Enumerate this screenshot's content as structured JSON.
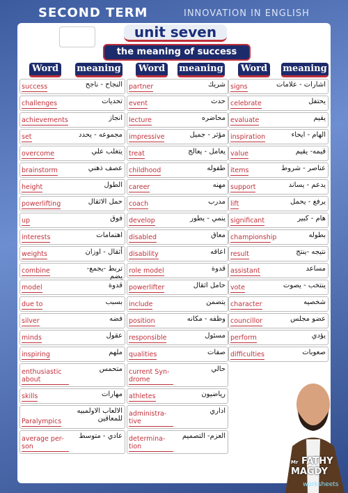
{
  "header": {
    "term": "SECOND TERM",
    "brand": "INNOVATION IN ENGLISH",
    "unit": "unit seven",
    "subtitle": "the meaning of success"
  },
  "columns": [
    {
      "headers": [
        "Word",
        "meaning"
      ],
      "rows": [
        {
          "word": "success",
          "meaning": "النجاح - ناجح"
        },
        {
          "word": "challenges",
          "meaning": "تحديات"
        },
        {
          "word": "achievements",
          "meaning": "انجاز"
        },
        {
          "word": "set",
          "meaning": "مجموعه - يحدد"
        },
        {
          "word": "overcome",
          "meaning": "يتغلب علي"
        },
        {
          "word": "brainstorm",
          "meaning": "عصف ذهني"
        },
        {
          "word": "height",
          "meaning": "الطول"
        },
        {
          "word": "powerlifting",
          "meaning": "حمل الاثقال"
        },
        {
          "word": "up",
          "meaning": "فوق"
        },
        {
          "word": "interests",
          "meaning": "اهتمامات"
        },
        {
          "word": "weights",
          "meaning": "أثقال - اوزان"
        },
        {
          "word": "combine",
          "meaning": "تربط -يجمع- يضم"
        },
        {
          "word": "model",
          "meaning": "قدوة"
        },
        {
          "word": "due to",
          "meaning": "بسبب"
        },
        {
          "word": "silver",
          "meaning": "فضه"
        },
        {
          "word": "minds",
          "meaning": "عقول"
        },
        {
          "word": "inspiring",
          "meaning": "ملهم"
        },
        {
          "word": "enthusiastic about",
          "meaning": "متحمس"
        },
        {
          "word": "skills",
          "meaning": "مهارات"
        },
        {
          "word": "Paralympics",
          "meaning": "الالعاب الاولمبيه للمعاقين"
        },
        {
          "word": "average per-son",
          "meaning": "عادي - متوسط"
        }
      ]
    },
    {
      "headers": [
        "Word",
        "meaning"
      ],
      "rows": [
        {
          "word": "partner",
          "meaning": "شريك"
        },
        {
          "word": "event",
          "meaning": "حدث"
        },
        {
          "word": "lecture",
          "meaning": "محاضره"
        },
        {
          "word": "impressive",
          "meaning": "مؤثر - جميل"
        },
        {
          "word": "treat",
          "meaning": "يعامل - يعالج"
        },
        {
          "word": "childhood",
          "meaning": "طفوله"
        },
        {
          "word": "career",
          "meaning": "مهنه"
        },
        {
          "word": "coach",
          "meaning": "مدرب"
        },
        {
          "word": "develop",
          "meaning": "ينمي - يطور"
        },
        {
          "word": "disabled",
          "meaning": "معاق"
        },
        {
          "word": "disability",
          "meaning": "اعاقه"
        },
        {
          "word": "role model",
          "meaning": "قدوة"
        },
        {
          "word": "powerlifter",
          "meaning": "حامل اثقال"
        },
        {
          "word": "include",
          "meaning": "يتضمن"
        },
        {
          "word": "position",
          "meaning": "وظفه - مكانه"
        },
        {
          "word": "responsible",
          "meaning": "مسئول"
        },
        {
          "word": "qualities",
          "meaning": "صفات"
        },
        {
          "word": "current Syn-drome",
          "meaning": "حالي"
        },
        {
          "word": "athletes",
          "meaning": "رياضيون"
        },
        {
          "word": "administra-tive",
          "meaning": "اداري"
        },
        {
          "word": "determina-tion",
          "meaning": "العزم- التصميم"
        }
      ]
    },
    {
      "headers": [
        "Word",
        "meaning"
      ],
      "rows": [
        {
          "word": "signs",
          "meaning": "اشارات - علامات"
        },
        {
          "word": "celebrate",
          "meaning": "يحتفل"
        },
        {
          "word": "evaluate",
          "meaning": "يقيم"
        },
        {
          "word": "inspiration",
          "meaning": "الهام - ايحاء"
        },
        {
          "word": "value",
          "meaning": "قيمه- يقيم"
        },
        {
          "word": "items",
          "meaning": "عناصر - شروط"
        },
        {
          "word": "support",
          "meaning": "يدعم - يساند"
        },
        {
          "word": "lift",
          "meaning": "يرفع - يحمل"
        },
        {
          "word": "significant",
          "meaning": "هام - كبير"
        },
        {
          "word": "championship",
          "meaning": "بطوله"
        },
        {
          "word": "result",
          "meaning": "نتيجه -ينتج"
        },
        {
          "word": "assistant",
          "meaning": "مساعد"
        },
        {
          "word": "vote",
          "meaning": "ينتخب - يصوت"
        },
        {
          "word": "character",
          "meaning": "شخصيه"
        },
        {
          "word": "councillor",
          "meaning": "عضو مجلس"
        },
        {
          "word": "perform",
          "meaning": "يؤدي"
        },
        {
          "word": "difficulties",
          "meaning": "صعوبات"
        }
      ]
    }
  ],
  "author": {
    "prefix": "Mr",
    "name": "FATHY MAGDY",
    "tag": "worksheets"
  }
}
